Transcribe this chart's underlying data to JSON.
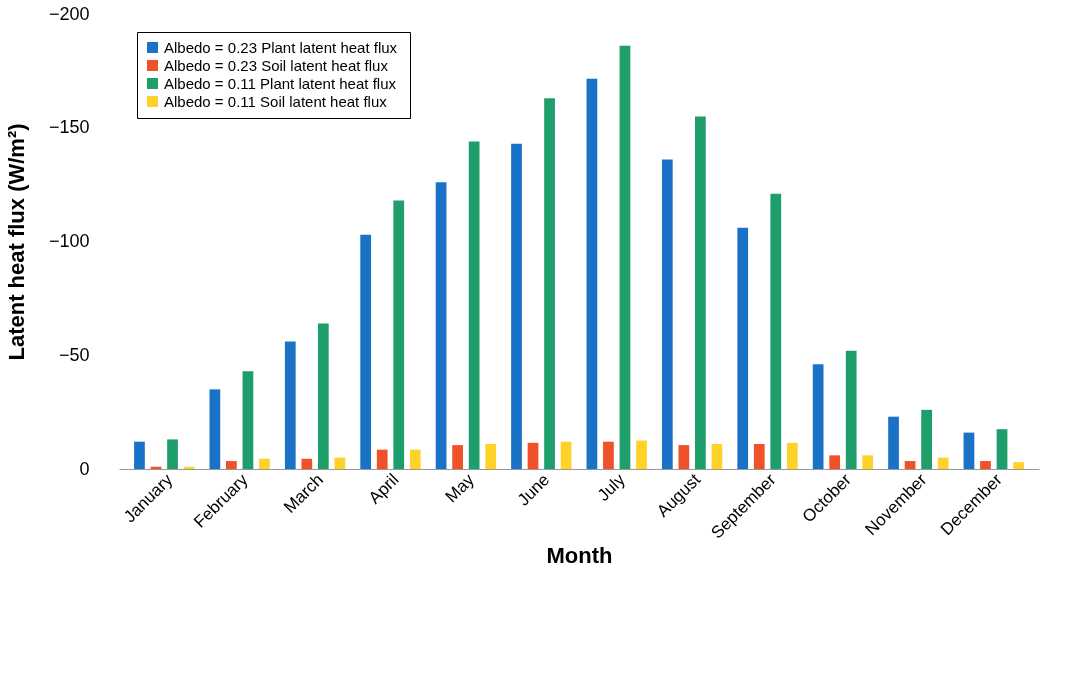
{
  "chart_data": {
    "type": "bar",
    "xlabel": "Month",
    "ylabel": "Latent heat flux (W/m²)",
    "categories": [
      "January",
      "February",
      "March",
      "April",
      "May",
      "June",
      "July",
      "August",
      "September",
      "October",
      "November",
      "December"
    ],
    "series": [
      {
        "name": "Albedo  = 0.23 Plant latent heat flux",
        "color": "#1a72c6",
        "values": [
          -12,
          -35,
          -56,
          -103,
          -126,
          -143,
          -171.5,
          -136,
          -106,
          -46,
          -23,
          -16
        ]
      },
      {
        "name": "Albedo  = 0.23 Soil latent heat flux",
        "color": "#f0502a",
        "values": [
          -1,
          -3.5,
          -4.5,
          -8.5,
          -10.5,
          -11.5,
          -12,
          -10.5,
          -11,
          -6,
          -3.5,
          -3.5
        ]
      },
      {
        "name": "Albedo = 0.11 Plant latent heat flux",
        "color": "#1e9e6a",
        "values": [
          -13,
          -43,
          -64,
          -118,
          -144,
          -163,
          -186,
          -155,
          -121,
          -52,
          -26,
          -17.5
        ]
      },
      {
        "name": "Albedo = 0.11 Soil latent heat flux",
        "color": "#ffd22a",
        "values": [
          -1,
          -4.5,
          -5,
          -8.5,
          -11,
          -12,
          -12.5,
          -11,
          -11.5,
          -6,
          -5,
          -3
        ]
      }
    ],
    "ylim": [
      0,
      -200
    ],
    "yticks": [
      0,
      -50,
      -100,
      -150,
      -200
    ],
    "grid": false,
    "legend": "top left"
  }
}
